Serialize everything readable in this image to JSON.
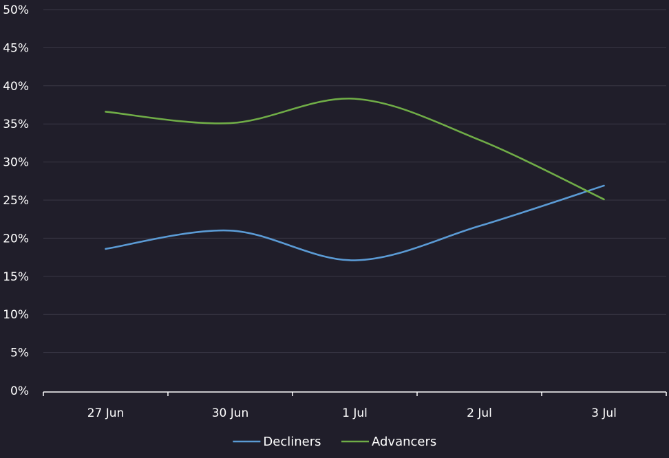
{
  "chart_data": {
    "type": "line",
    "title": "",
    "xlabel": "",
    "ylabel": "",
    "categories": [
      "27 Jun",
      "30 Jun",
      "1 Jul",
      "2 Jul",
      "3 Jul"
    ],
    "y_ticks": [
      "0%",
      "5%",
      "10%",
      "15%",
      "20%",
      "25%",
      "30%",
      "35%",
      "40%",
      "45%",
      "50%"
    ],
    "ylim": [
      0,
      50
    ],
    "y_unit": "%",
    "grid": true,
    "smooth": true,
    "legend_position": "bottom-center",
    "series": [
      {
        "name": "Decliners",
        "color": "#5b9bd5",
        "values": [
          18.6,
          21.0,
          17.1,
          21.6,
          26.9
        ]
      },
      {
        "name": "Advancers",
        "color": "#70ad47",
        "values": [
          36.6,
          35.1,
          38.3,
          32.9,
          25.1
        ]
      }
    ]
  }
}
